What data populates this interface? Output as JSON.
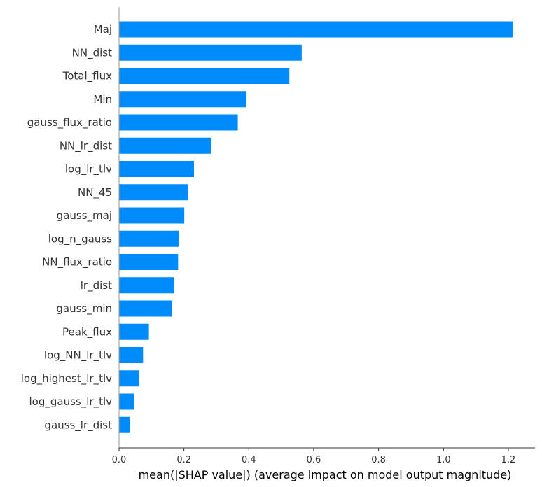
{
  "chart_data": {
    "type": "bar",
    "orientation": "horizontal",
    "categories": [
      "Maj",
      "NN_dist",
      "Total_flux",
      "Min",
      "gauss_flux_ratio",
      "NN_lr_dist",
      "log_lr_tlv",
      "NN_45",
      "gauss_maj",
      "log_n_gauss",
      "NN_flux_ratio",
      "lr_dist",
      "gauss_min",
      "Peak_flux",
      "log_NN_lr_tlv",
      "log_highest_lr_tlv",
      "log_gauss_lr_tlv",
      "gauss_lr_dist"
    ],
    "values": [
      1.215,
      0.563,
      0.525,
      0.393,
      0.366,
      0.283,
      0.231,
      0.212,
      0.201,
      0.184,
      0.182,
      0.169,
      0.164,
      0.092,
      0.074,
      0.062,
      0.047,
      0.034
    ],
    "xlabel": "mean(|SHAP value|) (average impact on model output magnitude)",
    "ylabel": "",
    "title": "",
    "xlim": [
      0,
      1.27
    ],
    "xticks": [
      "0.0",
      "0.2",
      "0.4",
      "0.6",
      "0.8",
      "1.0",
      "1.2"
    ],
    "bar_color": "#008bfb",
    "grid": false
  }
}
